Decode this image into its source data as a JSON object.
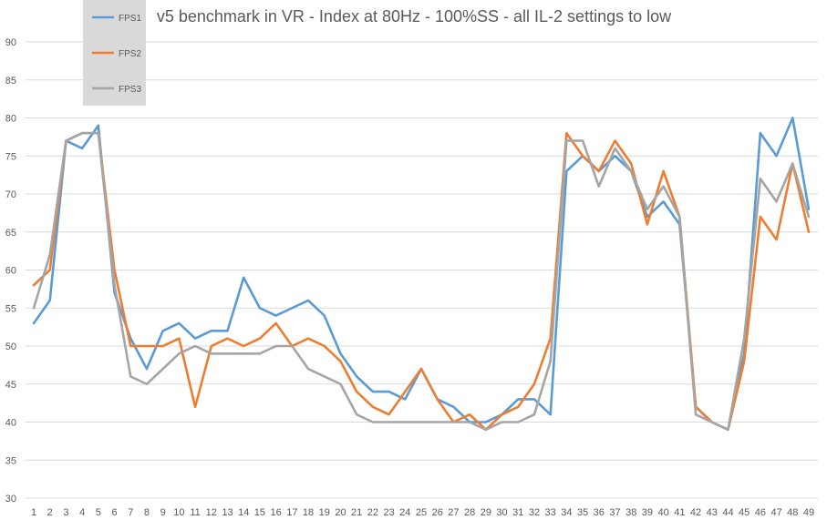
{
  "chart_data": {
    "type": "line",
    "title": "v5 benchmark in VR - Index at 80Hz - 100%SS - all IL-2 settings to low",
    "xlabel": "",
    "ylabel": "",
    "ylim": [
      30,
      90
    ],
    "y_ticks": [
      30,
      35,
      40,
      45,
      50,
      55,
      60,
      65,
      70,
      75,
      80,
      85,
      90
    ],
    "x": [
      1,
      2,
      3,
      4,
      5,
      6,
      7,
      8,
      9,
      10,
      11,
      12,
      13,
      14,
      15,
      16,
      17,
      18,
      19,
      20,
      21,
      22,
      23,
      24,
      25,
      26,
      27,
      28,
      29,
      30,
      31,
      32,
      33,
      34,
      35,
      36,
      37,
      38,
      39,
      40,
      41,
      42,
      43,
      44,
      45,
      46,
      47,
      48,
      49
    ],
    "grid": "horizontal",
    "legend_position": "top-left",
    "series": [
      {
        "name": "FPS1",
        "color": "#5B9BD5",
        "values": [
          53,
          56,
          77,
          76,
          79,
          57,
          51,
          47,
          52,
          53,
          51,
          52,
          52,
          59,
          55,
          54,
          55,
          56,
          54,
          49,
          46,
          44,
          44,
          43,
          47,
          43,
          42,
          40,
          40,
          41,
          43,
          43,
          41,
          73,
          75,
          73,
          75,
          73,
          67,
          69,
          66,
          42,
          40,
          39,
          49,
          78,
          75,
          80,
          68
        ]
      },
      {
        "name": "FPS2",
        "color": "#ED7D31",
        "values": [
          58,
          60,
          77,
          78,
          78,
          60,
          50,
          50,
          50,
          51,
          42,
          50,
          51,
          50,
          51,
          53,
          50,
          51,
          50,
          48,
          44,
          42,
          41,
          44,
          47,
          43,
          40,
          41,
          39,
          41,
          42,
          45,
          51,
          78,
          75,
          73,
          77,
          74,
          66,
          73,
          67,
          42,
          40,
          39,
          48,
          67,
          64,
          74,
          65
        ]
      },
      {
        "name": "FPS3",
        "color": "#A5A5A5",
        "values": [
          55,
          62,
          77,
          78,
          78,
          58,
          46,
          45,
          47,
          49,
          50,
          49,
          49,
          49,
          49,
          50,
          50,
          47,
          46,
          45,
          41,
          40,
          40,
          40,
          40,
          40,
          40,
          40,
          39,
          40,
          40,
          41,
          48,
          77,
          77,
          71,
          76,
          73,
          68,
          71,
          67,
          41,
          40,
          39,
          51,
          72,
          69,
          74,
          67
        ]
      }
    ]
  }
}
